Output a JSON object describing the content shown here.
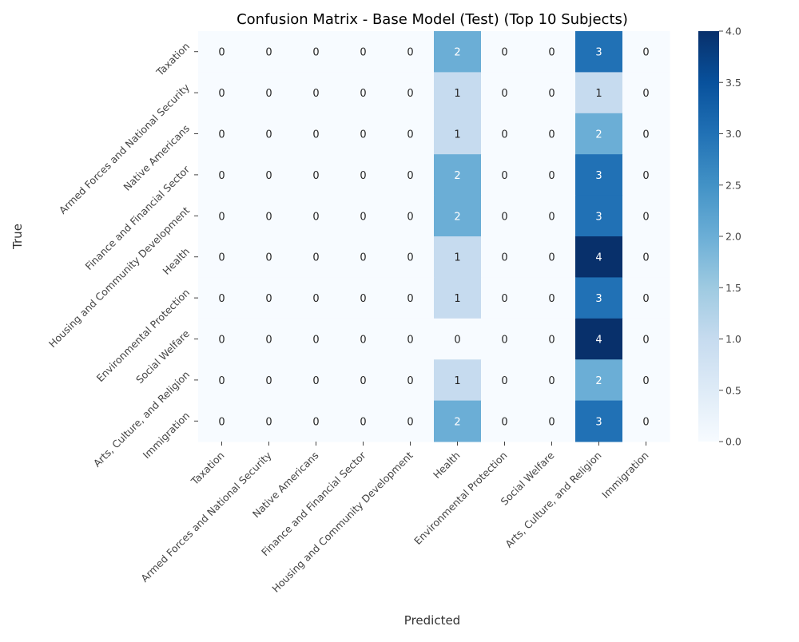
{
  "chart_data": {
    "type": "heatmap",
    "title": "Confusion Matrix - Base Model (Test) (Top 10 Subjects)",
    "xlabel": "Predicted",
    "ylabel": "True",
    "x_categories": [
      "Taxation",
      "Armed Forces and National Security",
      "Native Americans",
      "Finance and Financial Sector",
      "Housing and Community Development",
      "Health",
      "Environmental Protection",
      "Social Welfare",
      "Arts, Culture, and Religion",
      "Immigration"
    ],
    "y_categories": [
      "Taxation",
      "Armed Forces and National Security",
      "Native Americans",
      "Finance and Financial Sector",
      "Housing and Community Development",
      "Health",
      "Environmental Protection",
      "Social Welfare",
      "Arts, Culture, and Religion",
      "Immigration"
    ],
    "matrix": [
      [
        0,
        0,
        0,
        0,
        0,
        2,
        0,
        0,
        3,
        0
      ],
      [
        0,
        0,
        0,
        0,
        0,
        1,
        0,
        0,
        1,
        0
      ],
      [
        0,
        0,
        0,
        0,
        0,
        1,
        0,
        0,
        2,
        0
      ],
      [
        0,
        0,
        0,
        0,
        0,
        2,
        0,
        0,
        3,
        0
      ],
      [
        0,
        0,
        0,
        0,
        0,
        2,
        0,
        0,
        3,
        0
      ],
      [
        0,
        0,
        0,
        0,
        0,
        1,
        0,
        0,
        4,
        0
      ],
      [
        0,
        0,
        0,
        0,
        0,
        1,
        0,
        0,
        3,
        0
      ],
      [
        0,
        0,
        0,
        0,
        0,
        0,
        0,
        0,
        4,
        0
      ],
      [
        0,
        0,
        0,
        0,
        0,
        1,
        0,
        0,
        2,
        0
      ],
      [
        0,
        0,
        0,
        0,
        0,
        2,
        0,
        0,
        3,
        0
      ]
    ],
    "colorbar": {
      "colormap": "Blues",
      "vmin": 0,
      "vmax": 4,
      "ticks": [
        "0.0",
        "0.5",
        "1.0",
        "1.5",
        "2.0",
        "2.5",
        "3.0",
        "3.5",
        "4.0"
      ]
    }
  }
}
